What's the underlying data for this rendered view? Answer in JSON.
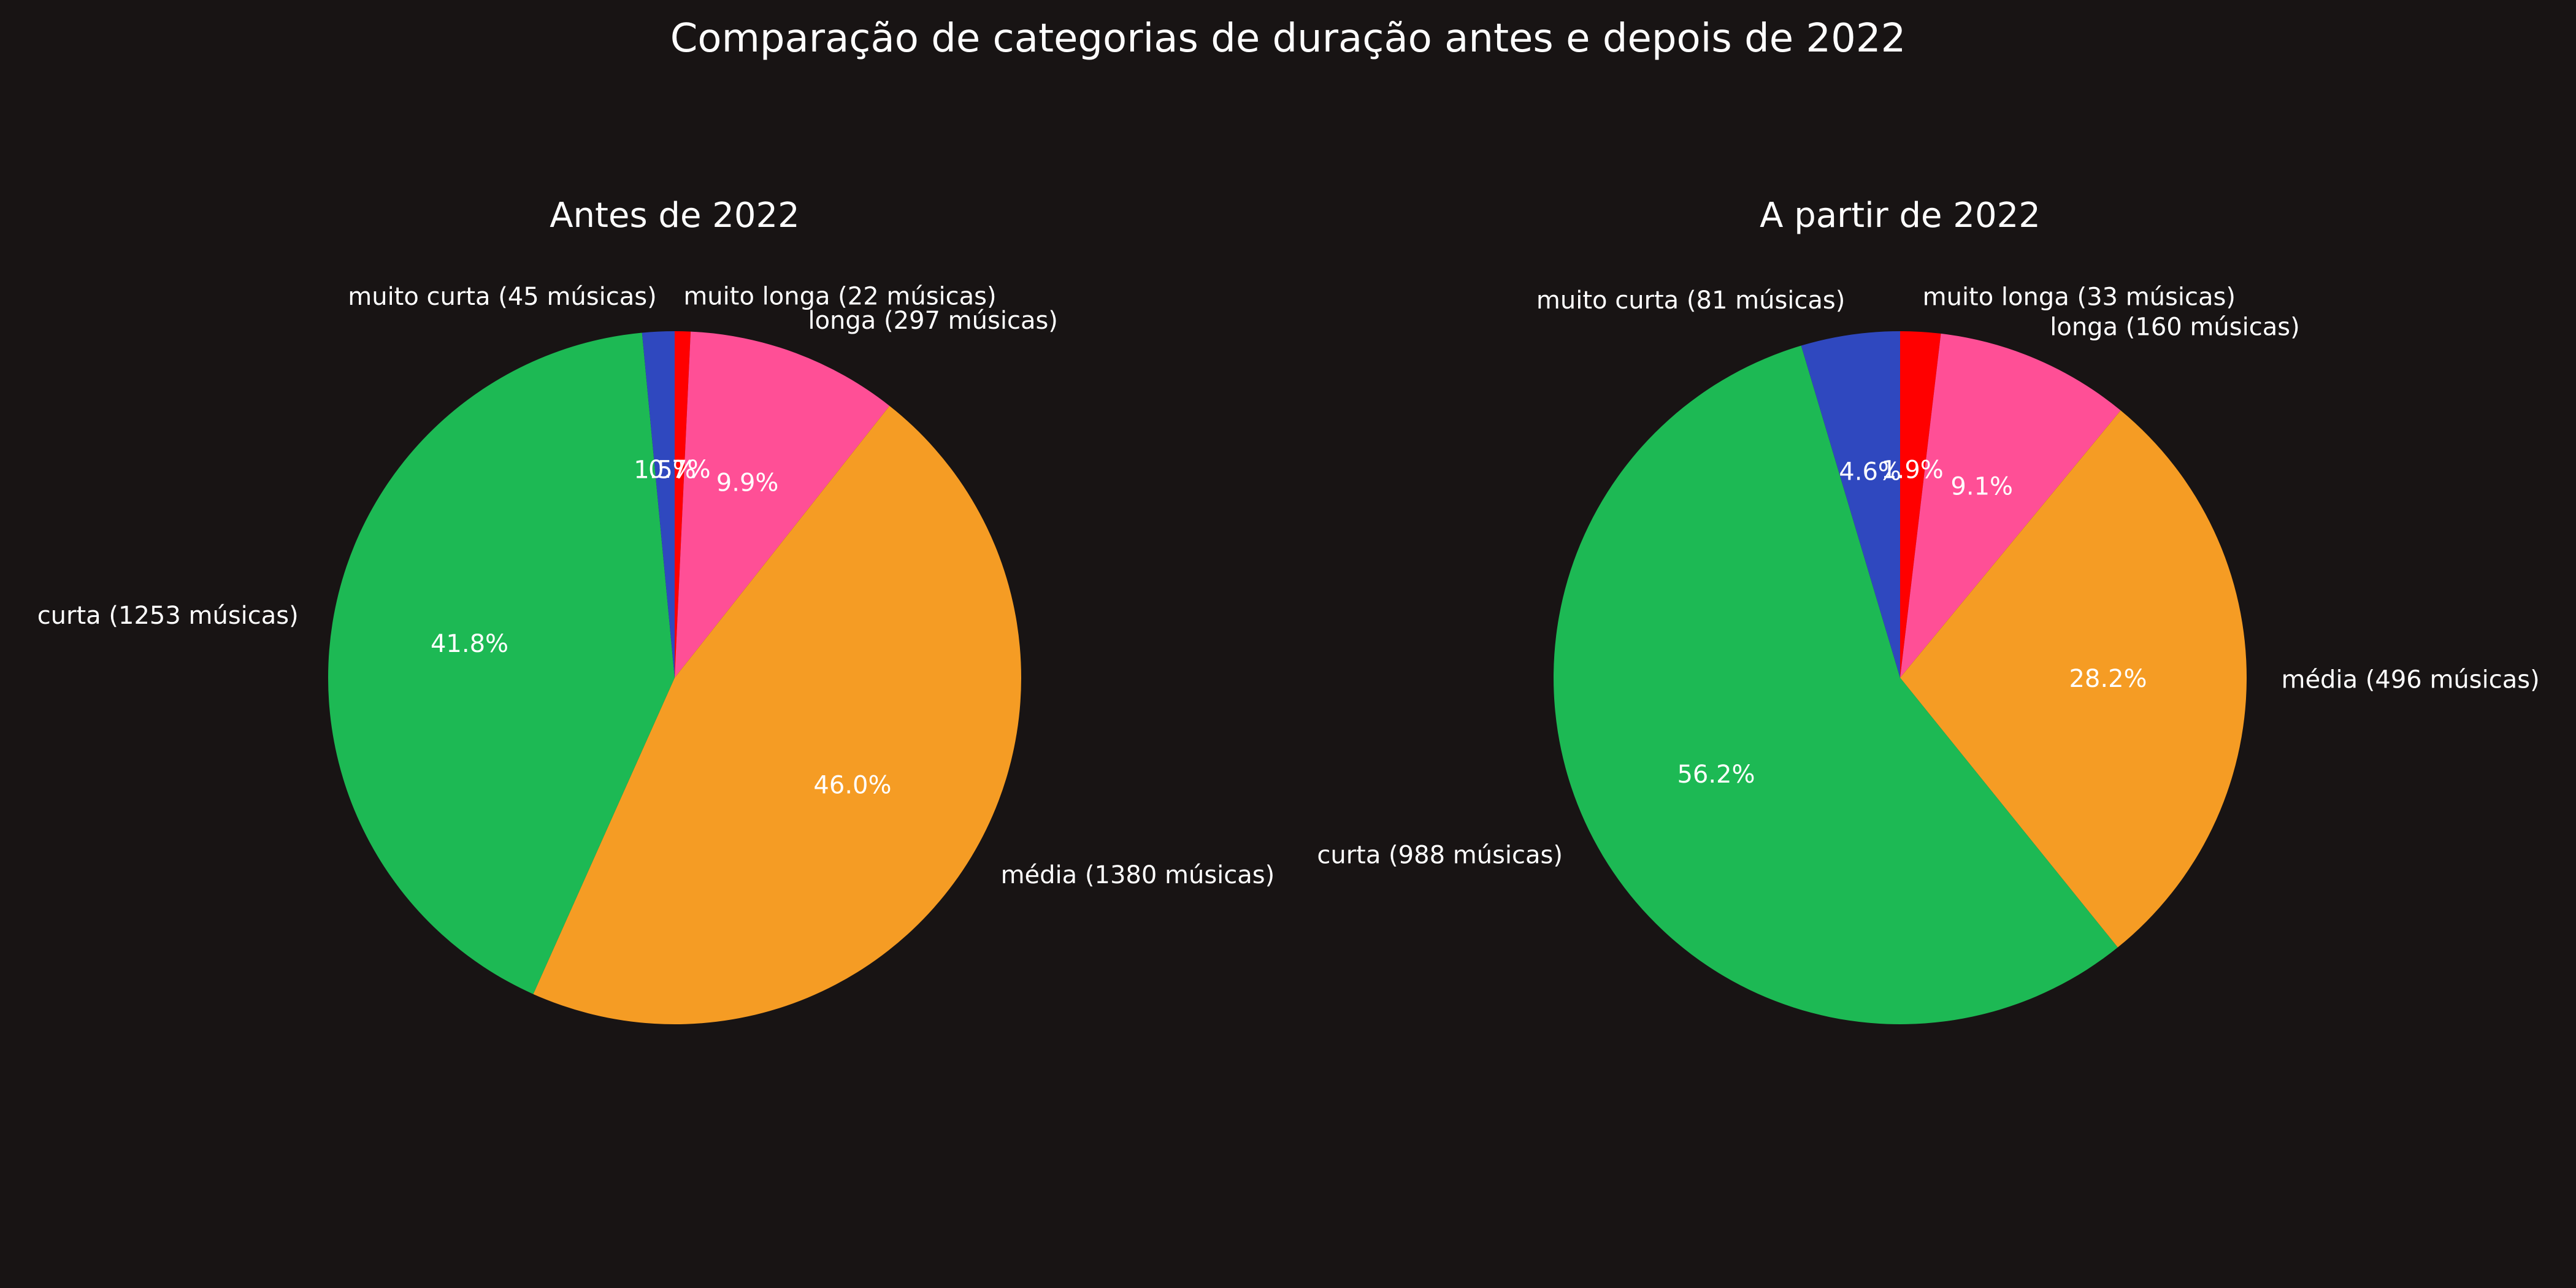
{
  "figure": {
    "title": "Comparação de categorias de duração antes e depois de 2022",
    "background": "#181414",
    "text_color": "#ffffff"
  },
  "chart_data": [
    {
      "type": "pie",
      "title": "Antes de 2022",
      "start_angle_deg": 90,
      "direction": "clockwise",
      "slices": [
        {
          "label": "muito longa (22 músicas)",
          "value": 22,
          "pct_label": "0.7%",
          "color": "#ff0000"
        },
        {
          "label": "longa (297 músicas)",
          "value": 297,
          "pct_label": "9.9%",
          "color": "#ff4f96"
        },
        {
          "label": "média (1380 músicas)",
          "value": 1380,
          "pct_label": "46.0%",
          "color": "#f59c24"
        },
        {
          "label": "curta (1253 músicas)",
          "value": 1253,
          "pct_label": "41.8%",
          "color": "#1db954"
        },
        {
          "label": "muito curta (45 músicas)",
          "value": 45,
          "pct_label": "1.5%",
          "color": "#2f48bf"
        }
      ]
    },
    {
      "type": "pie",
      "title": "A partir de 2022",
      "start_angle_deg": 90,
      "direction": "clockwise",
      "slices": [
        {
          "label": "muito longa (33 músicas)",
          "value": 33,
          "pct_label": "1.9%",
          "color": "#ff0000"
        },
        {
          "label": "longa (160 músicas)",
          "value": 160,
          "pct_label": "9.1%",
          "color": "#ff4f96"
        },
        {
          "label": "média (496 músicas)",
          "value": 496,
          "pct_label": "28.2%",
          "color": "#f59c24"
        },
        {
          "label": "curta (988 músicas)",
          "value": 988,
          "pct_label": "56.2%",
          "color": "#1db954"
        },
        {
          "label": "muito curta (81 músicas)",
          "value": 81,
          "pct_label": "4.6%",
          "color": "#2f48bf"
        }
      ]
    }
  ]
}
